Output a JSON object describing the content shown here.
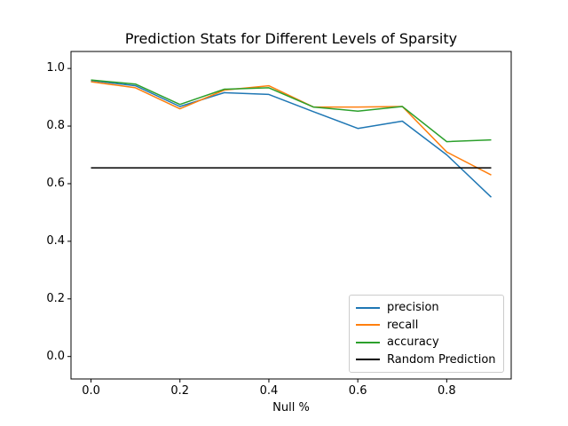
{
  "figure": {
    "background": "#ffffff",
    "frame_color": "#000000",
    "legend_border_color": "#cccccc"
  },
  "chart_data": {
    "type": "line",
    "title": "Prediction Stats for Different Levels of Sparsity",
    "xlabel": "Null %",
    "ylabel": "",
    "x": [
      0.0,
      0.1,
      0.2,
      0.3,
      0.4,
      0.5,
      0.6,
      0.7,
      0.8,
      0.9
    ],
    "series": [
      {
        "name": "precision",
        "color": "#1f77b4",
        "values": [
          0.958,
          0.94,
          0.868,
          0.916,
          0.91,
          0.85,
          0.792,
          0.817,
          0.7,
          0.553
        ]
      },
      {
        "name": "recall",
        "color": "#ff7f0e",
        "values": [
          0.954,
          0.933,
          0.86,
          0.925,
          0.94,
          0.866,
          0.866,
          0.868,
          0.71,
          0.63
        ]
      },
      {
        "name": "accuracy",
        "color": "#2ca02c",
        "values": [
          0.96,
          0.946,
          0.875,
          0.928,
          0.933,
          0.866,
          0.852,
          0.868,
          0.746,
          0.752
        ]
      },
      {
        "name": "Random Prediction",
        "color": "#000000",
        "constant": 0.655
      }
    ],
    "xlim": [
      -0.045,
      0.945
    ],
    "ylim": [
      -0.078,
      1.059
    ],
    "xticks": [
      "0.0",
      "0.2",
      "0.4",
      "0.6",
      "0.8"
    ],
    "yticks": [
      "0.0",
      "0.2",
      "0.4",
      "0.6",
      "0.8",
      "1.0"
    ],
    "grid": false,
    "legend_position": "lower right",
    "legend_entries": [
      "precision",
      "recall",
      "accuracy",
      "Random Prediction"
    ]
  }
}
